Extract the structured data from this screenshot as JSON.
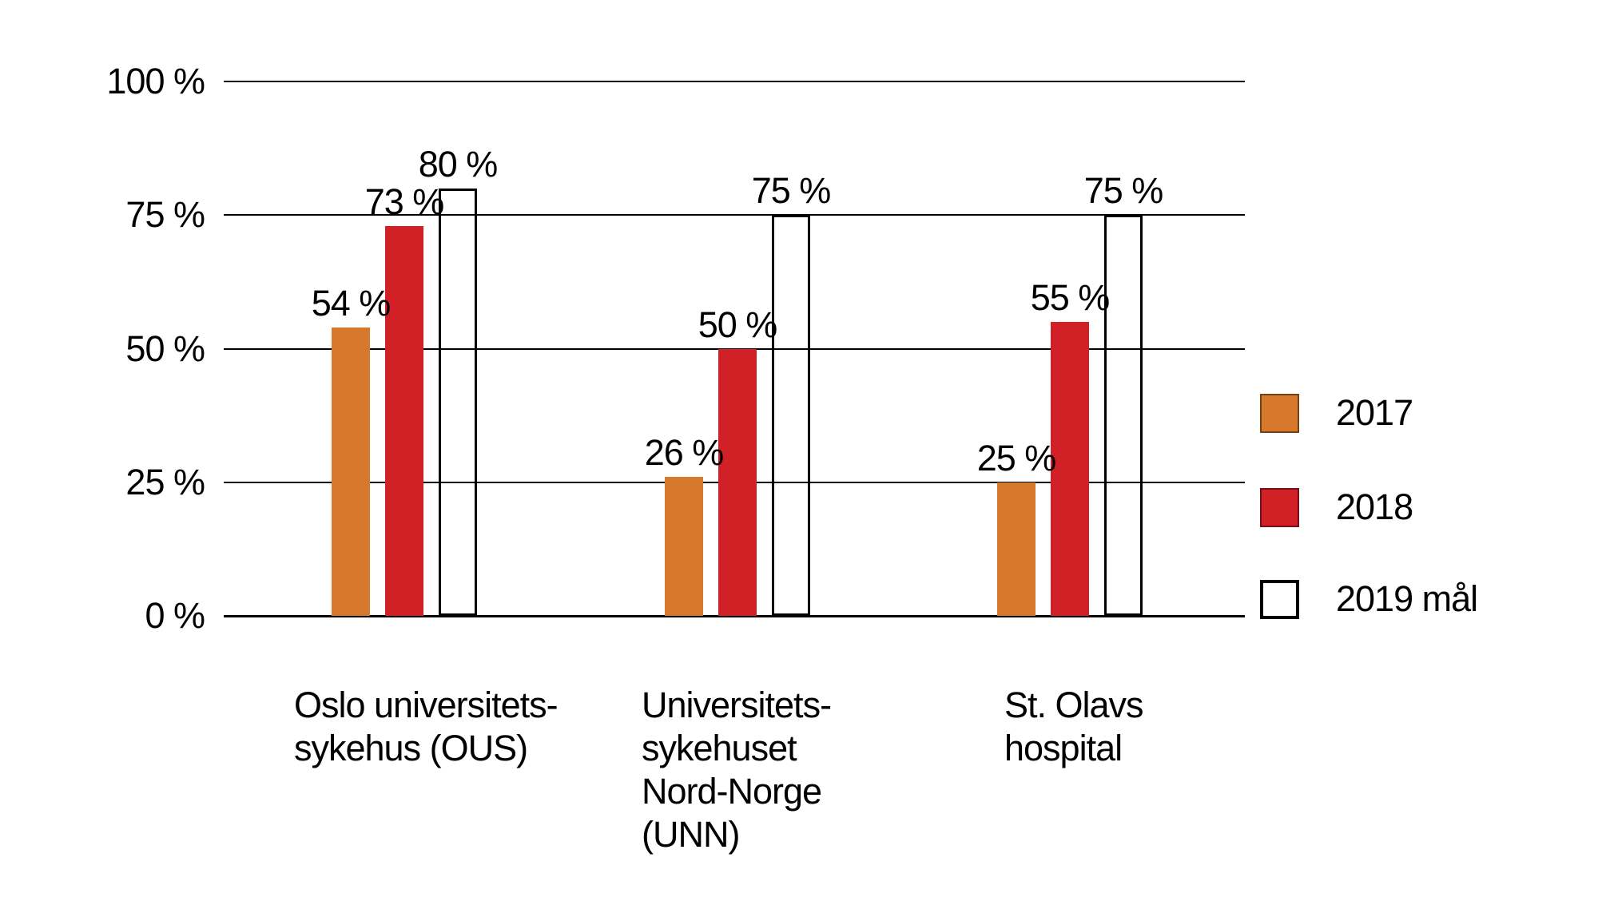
{
  "chart_data": {
    "type": "bar",
    "title": "",
    "unit": "%",
    "grid": "horizontal",
    "legend_position": "right",
    "categories": [
      "Oslo universitets-sykehus (OUS)",
      "Universitetssykehuset Nord-Norge (UNN)",
      "St. Olavs hospital"
    ],
    "category_label_lines": [
      [
        "Oslo universitets-",
        "sykehus (OUS)"
      ],
      [
        "Universitets-",
        "sykehuset",
        "Nord-Norge",
        "(UNN)"
      ],
      [
        "St. Olavs",
        "hospital"
      ]
    ],
    "series": [
      {
        "name": "2017",
        "color": "#d6792c",
        "style": "filled",
        "values": [
          54,
          26,
          25
        ],
        "value_labels": [
          "54 %",
          "26 %",
          "25 %"
        ]
      },
      {
        "name": "2018",
        "color": "#d22027",
        "style": "filled",
        "values": [
          73,
          50,
          55
        ],
        "value_labels": [
          "73 %",
          "50 %",
          "55 %"
        ]
      },
      {
        "name": "2019 mål",
        "color": "#ffffff",
        "outline_color": "#000000",
        "style": "outlined",
        "values": [
          80,
          75,
          75
        ],
        "value_labels": [
          "80 %",
          "75 %",
          "75 %"
        ]
      }
    ],
    "y_axis": {
      "min": 0,
      "max": 100,
      "ticks": [
        {
          "label": "100 %",
          "value": 100
        },
        {
          "label": "75 %",
          "value": 75
        },
        {
          "label": "50 %",
          "value": 50
        },
        {
          "label": "25 %",
          "value": 25
        },
        {
          "label": "0 %",
          "value": 0
        }
      ]
    },
    "colors": {
      "text": "#000000",
      "gridline": "#000000",
      "background": "#ffffff"
    }
  }
}
